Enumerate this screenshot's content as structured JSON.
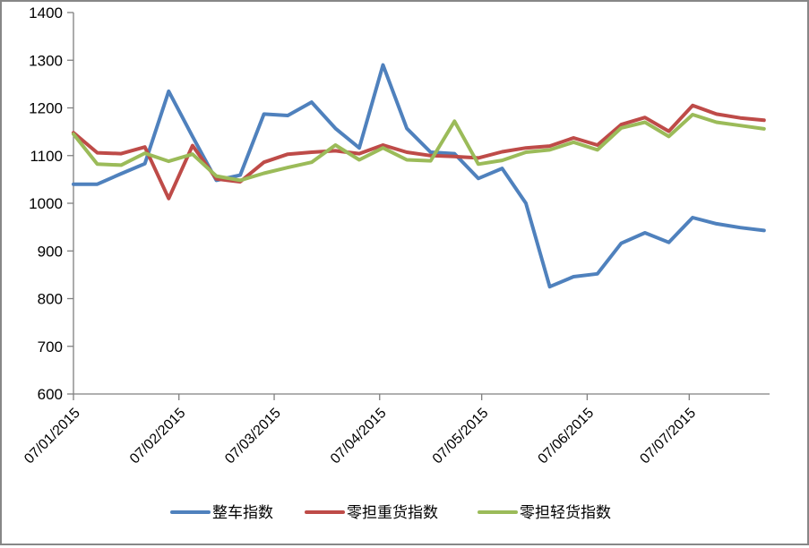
{
  "frame": {
    "background": "#FFFFFF",
    "border_color": "#878787"
  },
  "chart_data": {
    "type": "line",
    "title": "",
    "grid": "off",
    "legend_position": "bottom",
    "x_axis": {
      "tick_labels": [
        "07/01/2015",
        "07/02/2015",
        "07/03/2015",
        "07/04/2015",
        "07/05/2015",
        "07/06/2015",
        "07/07/2015"
      ],
      "tick_day_offsets": [
        0,
        31,
        59,
        90,
        120,
        151,
        181
      ],
      "axis_day_range": [
        0,
        204.6
      ],
      "point_day_offsets": [
        0,
        7,
        14,
        21,
        28,
        35,
        42,
        49,
        56,
        63,
        70,
        77,
        84,
        91,
        98,
        105,
        112,
        119,
        126,
        133,
        140,
        147,
        154,
        161,
        168,
        175,
        182,
        189,
        196,
        203
      ]
    },
    "y_axis": {
      "min": 600,
      "max": 1400,
      "step": 100,
      "tick_labels": [
        "600",
        "700",
        "800",
        "900",
        "1000",
        "1100",
        "1200",
        "1300",
        "1400"
      ]
    },
    "series": [
      {
        "name": "整车指数",
        "color": "#4F81BD",
        "values": [
          1040,
          1040,
          1062,
          1083,
          1235,
          1140,
          1048,
          1059,
          1187,
          1184,
          1212,
          1157,
          1116,
          1290,
          1157,
          1107,
          1104,
          1052,
          1073,
          1000,
          825,
          846,
          852,
          916,
          938,
          918,
          970,
          957,
          949,
          943
        ]
      },
      {
        "name": "零担重货指数",
        "color": "#BE4B48",
        "values": [
          1148,
          1106,
          1104,
          1118,
          1010,
          1121,
          1051,
          1045,
          1086,
          1103,
          1107,
          1110,
          1104,
          1122,
          1107,
          1100,
          1098,
          1095,
          1108,
          1116,
          1120,
          1137,
          1122,
          1165,
          1180,
          1151,
          1205,
          1187,
          1179,
          1174
        ]
      },
      {
        "name": "零担轻货指数",
        "color": "#9BBB59",
        "values": [
          1145,
          1082,
          1080,
          1105,
          1088,
          1103,
          1057,
          1048,
          1063,
          1075,
          1086,
          1122,
          1091,
          1116,
          1091,
          1089,
          1172,
          1082,
          1090,
          1107,
          1112,
          1128,
          1112,
          1158,
          1170,
          1140,
          1186,
          1170,
          1163,
          1156
        ]
      }
    ]
  }
}
